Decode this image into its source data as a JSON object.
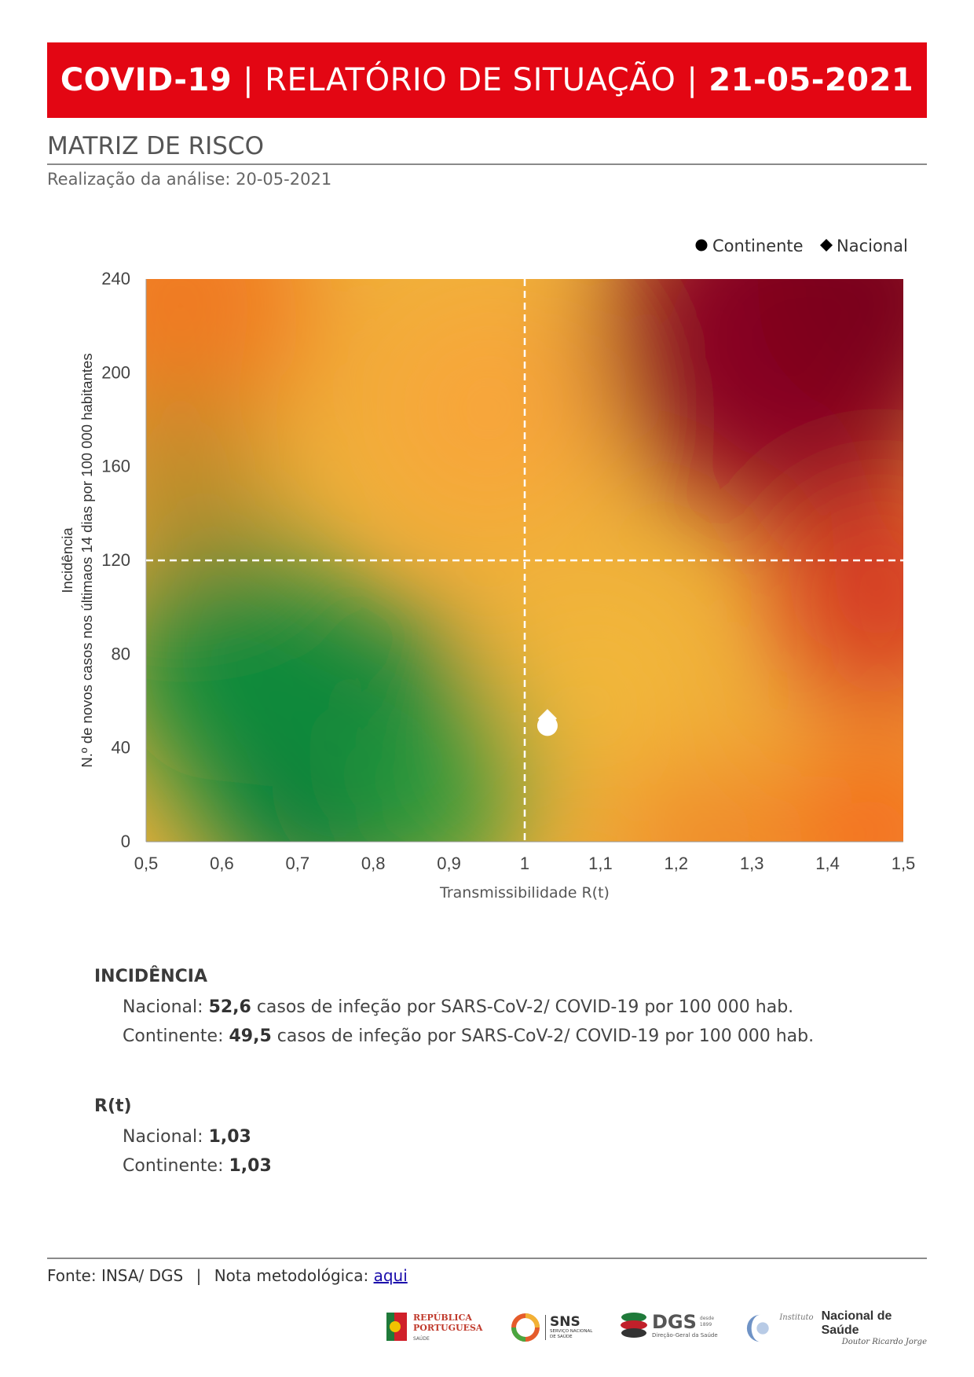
{
  "header": {
    "part1": "COVID-19",
    "sep": "|",
    "part2": "RELATÓRIO DE SITUAÇÃO",
    "part3": "21-05-2021"
  },
  "section": {
    "title": "MATRIZ DE RISCO",
    "subtitle": "Realização da análise: 20-05-2021"
  },
  "chart_data": {
    "type": "scatter",
    "xlabel": "Transmissibilidade R(t)",
    "ylabel_line1": "Incidência",
    "ylabel_line2": "N.º de novos casos nos últimaos 14 dias por 100 000 habitantes",
    "xlim": [
      0.5,
      1.5
    ],
    "ylim": [
      0,
      240
    ],
    "x_ticks": [
      "0,5",
      "0,6",
      "0,7",
      "0,8",
      "0,9",
      "1",
      "1,1",
      "1,2",
      "1,3",
      "1,4",
      "1,5"
    ],
    "y_ticks": [
      "0",
      "40",
      "80",
      "120",
      "160",
      "200",
      "240"
    ],
    "thresholds": {
      "x": 1,
      "y": 120
    },
    "legend_position": "top-right",
    "series": [
      {
        "name": "Continente",
        "marker": "circle",
        "x": 1.03,
        "y": 49.5
      },
      {
        "name": "Nacional",
        "marker": "diamond",
        "x": 1.03,
        "y": 52.6
      }
    ],
    "background": "risk gradient green (low) to yellow/orange to dark red (high)"
  },
  "incidencia": {
    "heading": "INCIDÊNCIA",
    "nacional_label": "Nacional: ",
    "nacional_value": "52,6",
    "nacional_rest": " casos de infeção por SARS-CoV-2/ COVID-19 por 100 000 hab.",
    "continente_label": "Continente: ",
    "continente_value": "49,5",
    "continente_rest": " casos de infeção por SARS-CoV-2/ COVID-19 por 100 000 hab."
  },
  "rt": {
    "heading": "R(t)",
    "nacional_label": "Nacional: ",
    "nacional_value": "1,03",
    "continente_label": "Continente: ",
    "continente_value": "1,03"
  },
  "footer": {
    "source": "Fonte: INSA/ DGS",
    "sep": "|",
    "note_label": "Nota metodológica:",
    "note_link": "aqui"
  },
  "logos": {
    "republica_line1": "REPÚBLICA",
    "republica_line2": "PORTUGUESA",
    "republica_line3": "SAÚDE",
    "sns": "SNS",
    "sns_sub1": "SERVIÇO NACIONAL",
    "sns_sub2": "DE SAÚDE",
    "dgs": "DGS",
    "dgs_since1": "desde",
    "dgs_since2": "1899",
    "dgs_sub": "Direção-Geral da Saúde",
    "insa_pre": "Instituto",
    "insa_main": "Nacional de Saúde",
    "insa_sub": "Doutor Ricardo Jorge"
  },
  "colors": {
    "banner": "#e30613",
    "green": "#007a3d",
    "yellow": "#e5c23a",
    "orange": "#f47d22",
    "darkred": "#8a0022"
  }
}
